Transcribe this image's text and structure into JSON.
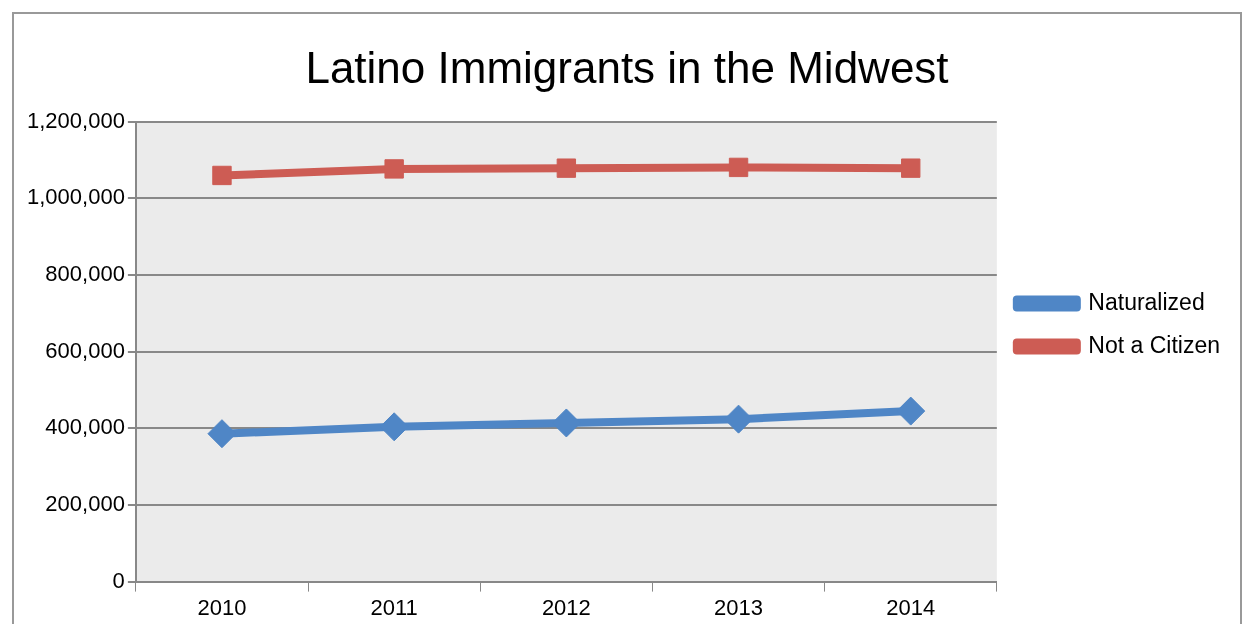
{
  "chart_data": {
    "type": "line",
    "title": "Latino Immigrants in the Midwest",
    "categories": [
      "2010",
      "2011",
      "2012",
      "2013",
      "2014"
    ],
    "series": [
      {
        "name": "Naturalized",
        "color": "#4f86c6",
        "marker": "diamond",
        "values": [
          386000,
          404000,
          414000,
          424000,
          445000
        ]
      },
      {
        "name": "Not a Citizen",
        "color": "#cd5c54",
        "marker": "square",
        "values": [
          1060000,
          1077000,
          1079000,
          1081000,
          1079000
        ]
      }
    ],
    "ylim": [
      0,
      1200000
    ],
    "yticks": [
      0,
      {
        "value": 200000,
        "label": "200,000"
      },
      {
        "value": 400000,
        "label": "400,000"
      },
      {
        "value": 600000,
        "label": "600,000"
      },
      {
        "value": 800000,
        "label": "800,000"
      },
      {
        "value": 1000000,
        "label": "1,000,000"
      },
      {
        "value": 1200000,
        "label": "1,200,000"
      }
    ],
    "grid": "y",
    "legend": "right",
    "line_style": "solid"
  }
}
